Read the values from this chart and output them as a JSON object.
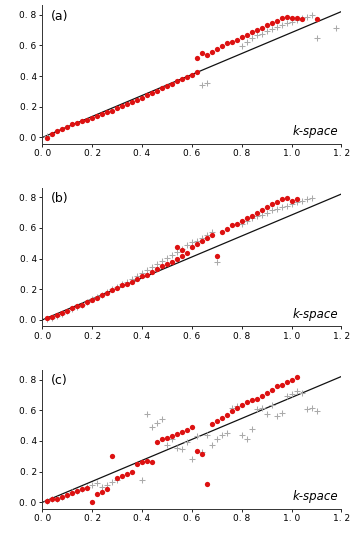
{
  "panels": [
    {
      "label": "(a)",
      "red_circles": [
        [
          0.02,
          -0.005
        ],
        [
          0.04,
          0.02
        ],
        [
          0.06,
          0.04
        ],
        [
          0.08,
          0.055
        ],
        [
          0.1,
          0.07
        ],
        [
          0.12,
          0.085
        ],
        [
          0.14,
          0.095
        ],
        [
          0.16,
          0.105
        ],
        [
          0.18,
          0.115
        ],
        [
          0.2,
          0.13
        ],
        [
          0.22,
          0.14
        ],
        [
          0.24,
          0.155
        ],
        [
          0.26,
          0.165
        ],
        [
          0.28,
          0.175
        ],
        [
          0.3,
          0.19
        ],
        [
          0.32,
          0.205
        ],
        [
          0.34,
          0.215
        ],
        [
          0.36,
          0.23
        ],
        [
          0.38,
          0.245
        ],
        [
          0.4,
          0.26
        ],
        [
          0.42,
          0.275
        ],
        [
          0.44,
          0.29
        ],
        [
          0.46,
          0.305
        ],
        [
          0.48,
          0.32
        ],
        [
          0.5,
          0.335
        ],
        [
          0.52,
          0.35
        ],
        [
          0.54,
          0.365
        ],
        [
          0.56,
          0.38
        ],
        [
          0.58,
          0.395
        ],
        [
          0.6,
          0.41
        ],
        [
          0.62,
          0.425
        ],
        [
          0.64,
          0.55
        ],
        [
          0.62,
          0.52
        ],
        [
          0.66,
          0.535
        ],
        [
          0.68,
          0.555
        ],
        [
          0.7,
          0.575
        ],
        [
          0.72,
          0.595
        ],
        [
          0.74,
          0.615
        ],
        [
          0.76,
          0.625
        ],
        [
          0.78,
          0.635
        ],
        [
          0.8,
          0.655
        ],
        [
          0.82,
          0.67
        ],
        [
          0.84,
          0.685
        ],
        [
          0.86,
          0.7
        ],
        [
          0.88,
          0.715
        ],
        [
          0.9,
          0.73
        ],
        [
          0.92,
          0.745
        ],
        [
          0.94,
          0.76
        ],
        [
          0.96,
          0.775
        ],
        [
          0.98,
          0.785
        ],
        [
          1.0,
          0.775
        ],
        [
          1.02,
          0.775
        ],
        [
          1.04,
          0.77
        ],
        [
          1.1,
          0.77
        ]
      ],
      "black_crosses": [
        [
          0.02,
          0.01
        ],
        [
          0.64,
          0.345
        ],
        [
          0.66,
          0.355
        ],
        [
          0.8,
          0.595
        ],
        [
          0.82,
          0.625
        ],
        [
          0.84,
          0.645
        ],
        [
          0.86,
          0.665
        ],
        [
          0.88,
          0.675
        ],
        [
          0.9,
          0.695
        ],
        [
          0.92,
          0.705
        ],
        [
          0.94,
          0.72
        ],
        [
          0.96,
          0.735
        ],
        [
          0.98,
          0.745
        ],
        [
          1.0,
          0.755
        ],
        [
          1.02,
          0.765
        ],
        [
          1.04,
          0.775
        ],
        [
          1.06,
          0.785
        ],
        [
          1.08,
          0.795
        ],
        [
          1.1,
          0.645
        ],
        [
          1.18,
          0.71
        ]
      ],
      "line_x": [
        0.0,
        1.2
      ],
      "line_y": [
        0.0,
        0.82
      ]
    },
    {
      "label": "(b)",
      "red_circles": [
        [
          0.02,
          0.01
        ],
        [
          0.04,
          0.02
        ],
        [
          0.06,
          0.03
        ],
        [
          0.08,
          0.045
        ],
        [
          0.1,
          0.06
        ],
        [
          0.12,
          0.075
        ],
        [
          0.14,
          0.09
        ],
        [
          0.16,
          0.1
        ],
        [
          0.18,
          0.115
        ],
        [
          0.2,
          0.13
        ],
        [
          0.22,
          0.145
        ],
        [
          0.24,
          0.16
        ],
        [
          0.26,
          0.175
        ],
        [
          0.28,
          0.195
        ],
        [
          0.3,
          0.21
        ],
        [
          0.32,
          0.225
        ],
        [
          0.34,
          0.235
        ],
        [
          0.36,
          0.25
        ],
        [
          0.38,
          0.265
        ],
        [
          0.4,
          0.285
        ],
        [
          0.42,
          0.295
        ],
        [
          0.44,
          0.315
        ],
        [
          0.46,
          0.33
        ],
        [
          0.48,
          0.35
        ],
        [
          0.5,
          0.365
        ],
        [
          0.52,
          0.38
        ],
        [
          0.54,
          0.395
        ],
        [
          0.56,
          0.415
        ],
        [
          0.54,
          0.475
        ],
        [
          0.56,
          0.455
        ],
        [
          0.58,
          0.435
        ],
        [
          0.6,
          0.475
        ],
        [
          0.62,
          0.495
        ],
        [
          0.64,
          0.515
        ],
        [
          0.66,
          0.535
        ],
        [
          0.68,
          0.555
        ],
        [
          0.7,
          0.415
        ],
        [
          0.72,
          0.575
        ],
        [
          0.74,
          0.595
        ],
        [
          0.76,
          0.615
        ],
        [
          0.78,
          0.625
        ],
        [
          0.8,
          0.645
        ],
        [
          0.82,
          0.665
        ],
        [
          0.84,
          0.675
        ],
        [
          0.86,
          0.695
        ],
        [
          0.88,
          0.715
        ],
        [
          0.9,
          0.735
        ],
        [
          0.92,
          0.755
        ],
        [
          0.94,
          0.77
        ],
        [
          0.96,
          0.785
        ],
        [
          0.98,
          0.795
        ],
        [
          1.0,
          0.775
        ],
        [
          1.02,
          0.785
        ]
      ],
      "black_crosses": [
        [
          0.02,
          0.005
        ],
        [
          0.04,
          0.015
        ],
        [
          0.06,
          0.025
        ],
        [
          0.08,
          0.04
        ],
        [
          0.1,
          0.055
        ],
        [
          0.12,
          0.07
        ],
        [
          0.14,
          0.085
        ],
        [
          0.16,
          0.1
        ],
        [
          0.18,
          0.115
        ],
        [
          0.2,
          0.135
        ],
        [
          0.22,
          0.15
        ],
        [
          0.24,
          0.165
        ],
        [
          0.26,
          0.185
        ],
        [
          0.28,
          0.2
        ],
        [
          0.3,
          0.215
        ],
        [
          0.32,
          0.235
        ],
        [
          0.34,
          0.25
        ],
        [
          0.36,
          0.265
        ],
        [
          0.38,
          0.285
        ],
        [
          0.4,
          0.305
        ],
        [
          0.42,
          0.325
        ],
        [
          0.44,
          0.345
        ],
        [
          0.46,
          0.365
        ],
        [
          0.48,
          0.385
        ],
        [
          0.5,
          0.405
        ],
        [
          0.52,
          0.425
        ],
        [
          0.54,
          0.445
        ],
        [
          0.56,
          0.465
        ],
        [
          0.58,
          0.485
        ],
        [
          0.6,
          0.505
        ],
        [
          0.62,
          0.515
        ],
        [
          0.64,
          0.535
        ],
        [
          0.66,
          0.555
        ],
        [
          0.68,
          0.575
        ],
        [
          0.7,
          0.375
        ],
        [
          0.8,
          0.625
        ],
        [
          0.82,
          0.645
        ],
        [
          0.84,
          0.665
        ],
        [
          0.86,
          0.675
        ],
        [
          0.88,
          0.685
        ],
        [
          0.9,
          0.695
        ],
        [
          0.92,
          0.715
        ],
        [
          0.94,
          0.725
        ],
        [
          0.96,
          0.735
        ],
        [
          0.98,
          0.745
        ],
        [
          1.0,
          0.755
        ],
        [
          1.02,
          0.765
        ],
        [
          1.04,
          0.775
        ],
        [
          1.06,
          0.785
        ],
        [
          1.08,
          0.795
        ]
      ],
      "line_x": [
        0.0,
        1.2
      ],
      "line_y": [
        0.0,
        0.82
      ]
    },
    {
      "label": "(c)",
      "red_circles": [
        [
          0.02,
          0.01
        ],
        [
          0.04,
          0.02
        ],
        [
          0.06,
          0.025
        ],
        [
          0.08,
          0.035
        ],
        [
          0.1,
          0.05
        ],
        [
          0.12,
          0.06
        ],
        [
          0.14,
          0.075
        ],
        [
          0.16,
          0.085
        ],
        [
          0.18,
          0.095
        ],
        [
          0.2,
          0.005
        ],
        [
          0.22,
          0.055
        ],
        [
          0.24,
          0.065
        ],
        [
          0.26,
          0.085
        ],
        [
          0.28,
          0.3
        ],
        [
          0.3,
          0.16
        ],
        [
          0.32,
          0.17
        ],
        [
          0.34,
          0.185
        ],
        [
          0.36,
          0.2
        ],
        [
          0.38,
          0.25
        ],
        [
          0.4,
          0.26
        ],
        [
          0.42,
          0.27
        ],
        [
          0.44,
          0.265
        ],
        [
          0.46,
          0.395
        ],
        [
          0.48,
          0.41
        ],
        [
          0.5,
          0.42
        ],
        [
          0.52,
          0.435
        ],
        [
          0.54,
          0.445
        ],
        [
          0.56,
          0.46
        ],
        [
          0.58,
          0.47
        ],
        [
          0.6,
          0.49
        ],
        [
          0.62,
          0.335
        ],
        [
          0.64,
          0.315
        ],
        [
          0.66,
          0.12
        ],
        [
          0.68,
          0.51
        ],
        [
          0.7,
          0.53
        ],
        [
          0.72,
          0.55
        ],
        [
          0.74,
          0.57
        ],
        [
          0.76,
          0.595
        ],
        [
          0.78,
          0.615
        ],
        [
          0.8,
          0.635
        ],
        [
          0.82,
          0.655
        ],
        [
          0.84,
          0.665
        ],
        [
          0.86,
          0.675
        ],
        [
          0.88,
          0.695
        ],
        [
          0.9,
          0.715
        ],
        [
          0.92,
          0.735
        ],
        [
          0.94,
          0.755
        ],
        [
          0.96,
          0.765
        ],
        [
          0.98,
          0.785
        ],
        [
          1.0,
          0.795
        ],
        [
          1.02,
          0.815
        ]
      ],
      "black_crosses": [
        [
          0.02,
          0.01
        ],
        [
          0.04,
          0.02
        ],
        [
          0.06,
          0.025
        ],
        [
          0.08,
          0.035
        ],
        [
          0.1,
          0.05
        ],
        [
          0.12,
          0.065
        ],
        [
          0.14,
          0.075
        ],
        [
          0.16,
          0.085
        ],
        [
          0.18,
          0.1
        ],
        [
          0.2,
          0.115
        ],
        [
          0.22,
          0.125
        ],
        [
          0.24,
          0.1
        ],
        [
          0.26,
          0.115
        ],
        [
          0.28,
          0.13
        ],
        [
          0.3,
          0.145
        ],
        [
          0.4,
          0.145
        ],
        [
          0.42,
          0.575
        ],
        [
          0.44,
          0.49
        ],
        [
          0.46,
          0.52
        ],
        [
          0.48,
          0.545
        ],
        [
          0.5,
          0.375
        ],
        [
          0.52,
          0.415
        ],
        [
          0.54,
          0.355
        ],
        [
          0.56,
          0.345
        ],
        [
          0.58,
          0.395
        ],
        [
          0.6,
          0.28
        ],
        [
          0.62,
          0.43
        ],
        [
          0.64,
          0.33
        ],
        [
          0.66,
          0.44
        ],
        [
          0.68,
          0.375
        ],
        [
          0.7,
          0.415
        ],
        [
          0.72,
          0.44
        ],
        [
          0.74,
          0.455
        ],
        [
          0.76,
          0.615
        ],
        [
          0.78,
          0.625
        ],
        [
          0.8,
          0.44
        ],
        [
          0.82,
          0.415
        ],
        [
          0.84,
          0.475
        ],
        [
          0.86,
          0.605
        ],
        [
          0.88,
          0.615
        ],
        [
          0.9,
          0.575
        ],
        [
          0.92,
          0.635
        ],
        [
          0.94,
          0.565
        ],
        [
          0.96,
          0.585
        ],
        [
          0.98,
          0.695
        ],
        [
          1.0,
          0.705
        ],
        [
          1.02,
          0.725
        ],
        [
          1.04,
          0.715
        ],
        [
          1.06,
          0.605
        ],
        [
          1.08,
          0.615
        ],
        [
          1.1,
          0.595
        ]
      ],
      "line_x": [
        0.0,
        1.2
      ],
      "line_y": [
        0.0,
        0.82
      ]
    }
  ],
  "xlim": [
    0.0,
    1.2
  ],
  "ylim": [
    -0.04,
    0.86
  ],
  "xticks": [
    0.0,
    0.2,
    0.4,
    0.6,
    0.8,
    1.0,
    1.2
  ],
  "yticks": [
    0.0,
    0.2,
    0.4,
    0.6,
    0.8
  ],
  "xlabel": "k-space",
  "red_color": "#dd1111",
  "cross_color": "#aaaaaa",
  "line_color": "#111111",
  "background": "#ffffff",
  "tick_labelsize": 6.5,
  "label_fontsize": 8.5,
  "panel_label_fontsize": 9.0
}
